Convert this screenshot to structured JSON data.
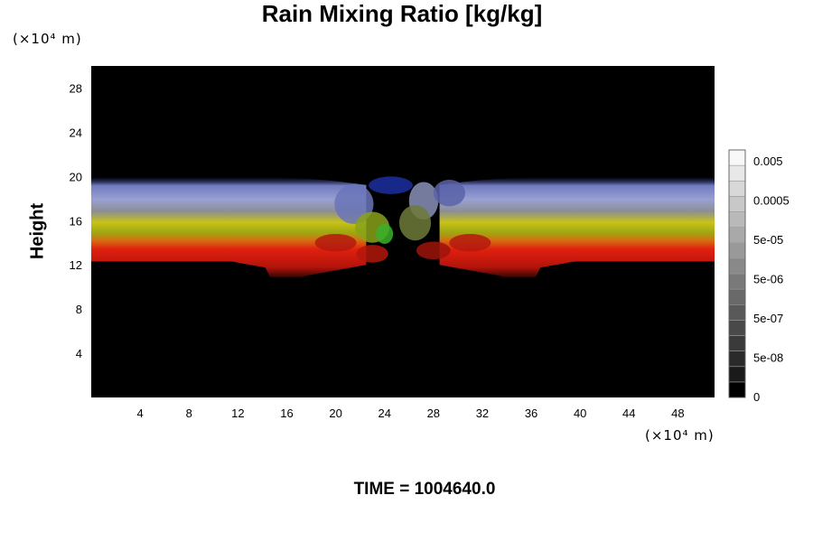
{
  "chart_data": {
    "type": "heatmap",
    "title": "Rain Mixing Ratio [kg/kg]",
    "ylabel": "Height",
    "y_unit": "(×10⁴ m)",
    "x_unit": "(×10⁴ m)",
    "x_ticks": [
      4,
      8,
      12,
      16,
      20,
      24,
      28,
      32,
      36,
      40,
      44,
      48
    ],
    "y_ticks": [
      4,
      8,
      12,
      16,
      20,
      24,
      28
    ],
    "xlim": [
      0,
      51
    ],
    "ylim": [
      0,
      30
    ],
    "colorbar": {
      "tick_labels": [
        "0.005",
        "0.0005",
        "5e-05",
        "5e-06",
        "5e-07",
        "5e-08",
        "0"
      ],
      "tick_values": [
        0.005,
        0.0005,
        5e-05,
        5e-06,
        5e-07,
        5e-08,
        0
      ],
      "levels": 16,
      "colors": [
        "#000000",
        "#ffffff"
      ]
    },
    "layers": [
      {
        "band": "blue",
        "color": "#7a86c8",
        "y_range": [
          16.5,
          20
        ]
      },
      {
        "band": "yellow",
        "color": "#b4b41e",
        "y_range": [
          14.5,
          16.5
        ]
      },
      {
        "band": "red",
        "color": "#c81e0f",
        "y_range": [
          11,
          14.5
        ]
      }
    ],
    "background": "#000000"
  },
  "footer": {
    "time_label": "TIME = 1004640.0"
  }
}
